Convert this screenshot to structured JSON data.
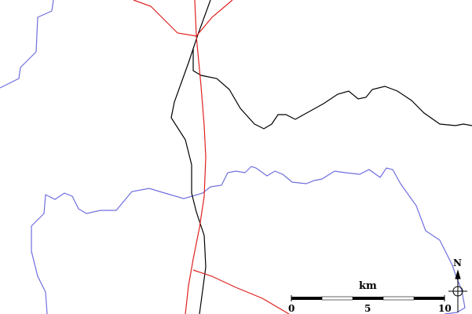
{
  "map": {
    "colors": {
      "water": "#6f6fdf",
      "road": "#e02020",
      "rail": "#000000",
      "background": "#ffffff"
    },
    "scale": {
      "unit": "km",
      "ticks": [
        "0",
        "5",
        "10"
      ]
    },
    "compass": {
      "label": "N"
    }
  }
}
